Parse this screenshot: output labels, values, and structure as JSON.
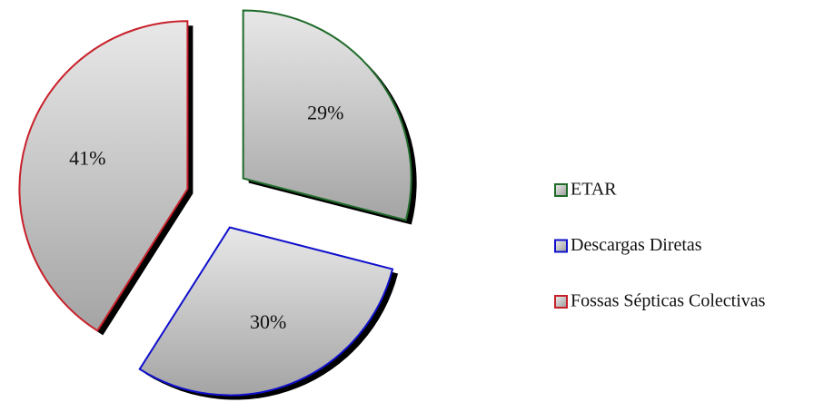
{
  "chart_data": {
    "type": "pie",
    "categories": [
      "ETAR",
      "Descargas Diretas",
      "Fossas Sépticas Colectivas"
    ],
    "values": [
      29,
      30,
      41
    ],
    "value_labels": [
      "29%",
      "30%",
      "41%"
    ],
    "colors": [
      "#1f6b2a",
      "#1010cc",
      "#c8202a"
    ],
    "legend": "right"
  }
}
